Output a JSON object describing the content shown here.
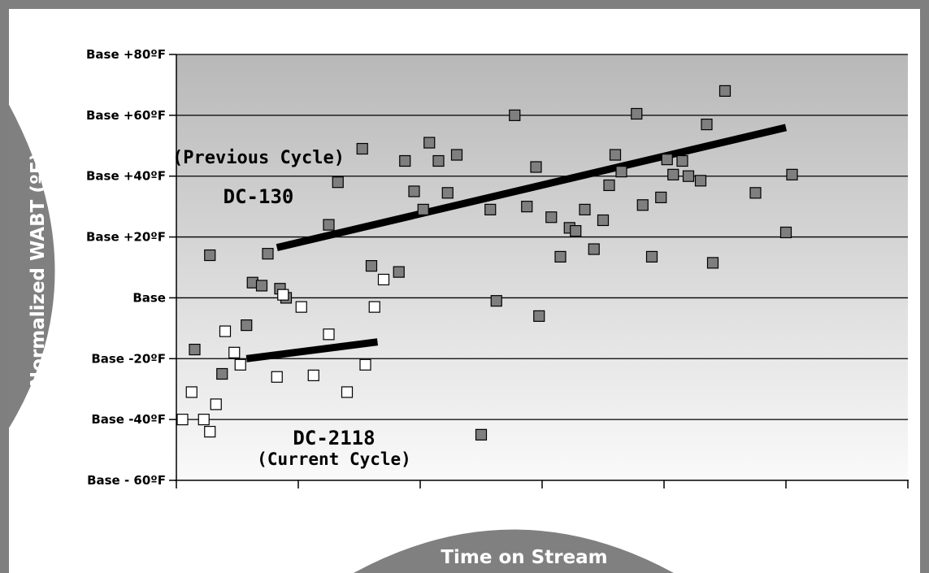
{
  "colors": {
    "frame": "#7f7f7f",
    "pill": "#808080",
    "previous_marker": "#7f7f7f",
    "current_marker": "#ffffff",
    "trend": "#000000",
    "band_top": "#b8b8b8",
    "band_bottom": "#fafafa"
  },
  "chart_data": {
    "type": "scatter",
    "title": "",
    "xlabel": "Time on Stream",
    "ylabel": "Normalized WABT (ºF)",
    "ylim": [
      -60,
      80
    ],
    "xlim": [
      0,
      120
    ],
    "grid": true,
    "y_tick_values": [
      80,
      60,
      40,
      20,
      0,
      -20,
      -40,
      -60
    ],
    "y_tick_labels": [
      "Base +80ºF",
      "Base +60ºF",
      "Base +40ºF",
      "Base +20ºF",
      "Base",
      "Base -20ºF",
      "Base -40ºF",
      "Base - 60ºF"
    ],
    "x_ticks": [
      0,
      20,
      40,
      60,
      80,
      100,
      120
    ],
    "series": [
      {
        "marker": "filled-gray-square",
        "points": [
          [
            3,
            -17
          ],
          [
            5.5,
            14
          ],
          [
            7.5,
            -25
          ],
          [
            11.5,
            -9
          ],
          [
            12.5,
            5
          ],
          [
            14,
            4
          ],
          [
            15,
            14.5
          ],
          [
            17,
            3
          ],
          [
            18,
            0
          ],
          [
            25,
            24
          ],
          [
            26.5,
            38
          ],
          [
            30.5,
            49
          ],
          [
            32,
            10.5
          ],
          [
            36.5,
            8.5
          ],
          [
            37.5,
            45
          ],
          [
            39,
            35
          ],
          [
            40.5,
            29
          ],
          [
            41.5,
            51
          ],
          [
            43,
            45
          ],
          [
            44.5,
            34.5
          ],
          [
            46,
            47
          ],
          [
            50,
            -45
          ],
          [
            51.5,
            29
          ],
          [
            52.5,
            -1
          ],
          [
            55.5,
            60
          ],
          [
            57.5,
            30
          ],
          [
            59,
            43
          ],
          [
            59.5,
            -6
          ],
          [
            61.5,
            26.5
          ],
          [
            63,
            13.5
          ],
          [
            64.5,
            23
          ],
          [
            65.5,
            22
          ],
          [
            67,
            29
          ],
          [
            68.5,
            16
          ],
          [
            70,
            25.5
          ],
          [
            71,
            37
          ],
          [
            72,
            47
          ],
          [
            73,
            41.5
          ],
          [
            75.5,
            60.5
          ],
          [
            76.5,
            30.5
          ],
          [
            78,
            13.5
          ],
          [
            79.5,
            33
          ],
          [
            80.5,
            45.5
          ],
          [
            81.5,
            40.5
          ],
          [
            83,
            45
          ],
          [
            84,
            40
          ],
          [
            86,
            38.5
          ],
          [
            87,
            57
          ],
          [
            88,
            11.5
          ],
          [
            90,
            68
          ],
          [
            95,
            34.5
          ],
          [
            100,
            21.5
          ],
          [
            101,
            40.5
          ]
        ]
      },
      {
        "marker": "open-square",
        "points": [
          [
            1,
            -40
          ],
          [
            2.5,
            -31
          ],
          [
            4.5,
            -40
          ],
          [
            5.5,
            -44
          ],
          [
            6.5,
            -35
          ],
          [
            8,
            -11
          ],
          [
            9.5,
            -18
          ],
          [
            10.5,
            -22
          ],
          [
            16.5,
            -26
          ],
          [
            17.5,
            1
          ],
          [
            20.5,
            -3
          ],
          [
            22.5,
            -25.5
          ],
          [
            25,
            -12
          ],
          [
            28,
            -31
          ],
          [
            31,
            -22
          ],
          [
            32.5,
            -3
          ],
          [
            34,
            6
          ]
        ]
      }
    ],
    "trend_lines": [
      {
        "label": "DC-130",
        "x": [
          16.5,
          100
        ],
        "y": [
          16.5,
          56
        ]
      },
      {
        "label": "DC-2118",
        "x": [
          11.5,
          33
        ],
        "y": [
          -20,
          -14.5
        ]
      }
    ],
    "annotations": {
      "previous_line1": "(Previous Cycle)",
      "previous_line2": "DC-130",
      "current_line1": "DC-2118",
      "current_line2": "(Current Cycle)"
    }
  }
}
